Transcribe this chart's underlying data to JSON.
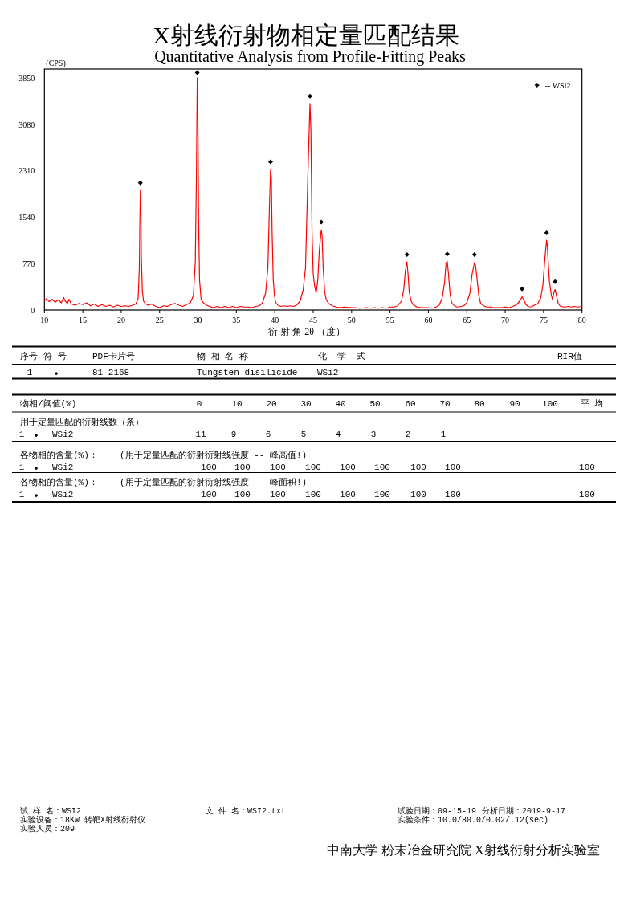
{
  "chart_data": {
    "type": "line",
    "title": "X射线衍射物相定量匹配结果",
    "subtitle": "Quantitative Analysis from Profile-Fitting Peaks",
    "xlabel": "衍 射 角 2θ （度）",
    "ylabel": "(CPS)",
    "xlim": [
      10,
      80
    ],
    "xticks": [
      10,
      15,
      20,
      25,
      30,
      35,
      40,
      45,
      50,
      55,
      60,
      65,
      70,
      75,
      80
    ],
    "ylim": [
      0,
      4000
    ],
    "yticks": [
      0,
      770,
      1540,
      2310,
      3080,
      3850
    ],
    "series": [
      {
        "color": "#ff0000",
        "x": [
          10.0,
          10.3,
          10.6,
          11.0,
          11.4,
          11.8,
          12.2,
          12.5,
          12.7,
          13.0,
          13.2,
          13.5,
          14.0,
          14.5,
          15.0,
          15.5,
          16.0,
          16.5,
          17.0,
          17.5,
          18.0,
          18.5,
          19.0,
          19.5,
          20.0,
          20.5,
          21.0,
          21.5,
          21.9,
          22.2,
          22.36,
          22.44,
          22.5,
          22.56,
          22.62,
          22.75,
          22.9,
          23.1,
          23.5,
          24.0,
          24.5,
          25.0,
          25.5,
          26.0,
          26.5,
          27.0,
          27.5,
          28.0,
          28.5,
          29.0,
          29.4,
          29.65,
          29.8,
          29.9,
          29.98,
          30.08,
          30.2,
          30.4,
          30.7,
          31.0,
          31.5,
          32.0,
          32.5,
          33.0,
          33.5,
          34.0,
          34.5,
          35.0,
          35.5,
          36.0,
          36.5,
          37.0,
          37.5,
          38.0,
          38.4,
          38.8,
          39.1,
          39.3,
          39.45,
          39.55,
          39.65,
          39.8,
          39.95,
          40.1,
          40.4,
          40.8,
          41.2,
          41.6,
          42.0,
          42.5,
          42.9,
          43.3,
          43.7,
          44.0,
          44.3,
          44.58,
          44.7,
          44.85,
          45.0,
          45.2,
          45.4,
          45.6,
          45.8,
          46.05,
          46.15,
          46.3,
          46.5,
          46.7,
          47.0,
          47.5,
          48.0,
          48.5,
          49.0,
          50.0,
          50.5,
          51.0,
          52.0,
          52.5,
          53.0,
          53.5,
          54.0,
          54.5,
          55.0,
          55.5,
          56.0,
          56.5,
          56.8,
          57.0,
          57.2,
          57.35,
          57.5,
          57.75,
          58.0,
          58.5,
          59.0,
          59.5,
          60.0,
          60.5,
          61.0,
          61.4,
          61.8,
          62.1,
          62.3,
          62.45,
          62.6,
          62.8,
          63.0,
          63.3,
          63.7,
          64.2,
          64.6,
          65.0,
          65.4,
          65.7,
          66.0,
          66.15,
          66.35,
          66.55,
          66.8,
          67.2,
          67.6,
          68.0,
          68.5,
          69.0,
          69.5,
          70.0,
          70.5,
          71.0,
          71.5,
          71.9,
          72.2,
          72.45,
          72.7,
          73.0,
          73.4,
          73.8,
          74.2,
          74.6,
          74.9,
          75.2,
          75.4,
          75.5,
          75.6,
          75.75,
          76.0,
          76.15,
          76.35,
          76.5,
          76.7,
          76.9,
          77.2,
          77.8,
          78.2,
          78.6,
          79.0,
          79.5,
          80.0
        ],
        "values": [
          150,
          190,
          140,
          180,
          130,
          170,
          120,
          210,
          150,
          110,
          180,
          100,
          80,
          110,
          90,
          120,
          70,
          100,
          60,
          90,
          60,
          80,
          50,
          80,
          60,
          70,
          60,
          80,
          100,
          190,
          700,
          1600,
          2000,
          1750,
          900,
          320,
          150,
          110,
          80,
          100,
          60,
          40,
          70,
          60,
          90,
          110,
          80,
          60,
          90,
          120,
          240,
          800,
          2300,
          3850,
          3300,
          1500,
          500,
          180,
          120,
          90,
          60,
          40,
          60,
          40,
          60,
          40,
          60,
          40,
          60,
          50,
          50,
          40,
          60,
          70,
          120,
          280,
          700,
          1700,
          2340,
          2200,
          1300,
          500,
          250,
          130,
          80,
          60,
          70,
          60,
          70,
          60,
          90,
          150,
          340,
          700,
          2200,
          3430,
          3000,
          1300,
          600,
          380,
          290,
          500,
          1000,
          1330,
          1250,
          700,
          300,
          170,
          110,
          70,
          50,
          40,
          50,
          40,
          40,
          30,
          40,
          30,
          40,
          30,
          40,
          30,
          50,
          50,
          70,
          150,
          350,
          650,
          800,
          600,
          300,
          150,
          90,
          50,
          40,
          40,
          40,
          30,
          50,
          80,
          200,
          450,
          780,
          810,
          620,
          300,
          130,
          80,
          50,
          60,
          70,
          120,
          280,
          600,
          790,
          730,
          500,
          250,
          110,
          70,
          50,
          50,
          40,
          40,
          40,
          50,
          40,
          60,
          90,
          150,
          220,
          160,
          90,
          60,
          50,
          80,
          100,
          190,
          400,
          900,
          1160,
          1050,
          800,
          480,
          250,
          180,
          300,
          340,
          230,
          110,
          60,
          50,
          60,
          50,
          60,
          50,
          60
        ]
      },
      {
        "type": "scatter",
        "name": "-- WSi2",
        "color": "#000000",
        "marker": "diamond",
        "x": [
          22.5,
          29.9,
          39.45,
          44.58,
          46.05,
          57.2,
          62.45,
          66.0,
          72.2,
          75.4,
          76.5
        ],
        "values": [
          2110,
          3940,
          2460,
          3550,
          1460,
          920,
          930,
          920,
          350,
          1280,
          470
        ]
      }
    ],
    "legend": "top right",
    "annotations": [
      "序号",
      "符 号",
      "PDF卡片号",
      "物 相 名 称",
      "化  学  式",
      "RIR值",
      "1",
      "◆",
      "81-2168",
      "Tungsten disilicide",
      "WSi2",
      "物相/阈值(%)",
      "0",
      "10",
      "20",
      "30",
      "40",
      "50",
      "60",
      "70",
      "80",
      "90",
      "100",
      "平 均",
      "用于定量匹配的衍射线数（条）",
      "1",
      "◆",
      "WSi2",
      "11",
      "9",
      "6",
      "5",
      "4",
      "3",
      "2",
      "1",
      "各物相的含量(%)：",
      "(用于定量匹配的衍射衍射线强度 -- 峰高值!)",
      "1",
      "◆",
      "WSi2",
      "100",
      "100",
      "100",
      "100",
      "100",
      "100",
      "100",
      "100",
      "100",
      "各物相的含量(%)：",
      "(用于定量匹配的衍射衍射线强度 -- 峰面积!)",
      "1",
      "◆",
      "WSi2",
      "100",
      "100",
      "100",
      "100",
      "100",
      "100",
      "100",
      "100",
      "100",
      "试 样 名：WSI2",
      "文 件 名：WSI2.txt",
      "试验日期：09-15-19",
      "分析日期：2019-9-17",
      "实验设备：18KW 转靶X射线衍射仪",
      "实验条件：10.0/80.0/0.02/.12(sec)",
      "实验人员：209",
      "中南大学 粉末冶金研究院 X射线衍射分析实验室"
    ]
  }
}
